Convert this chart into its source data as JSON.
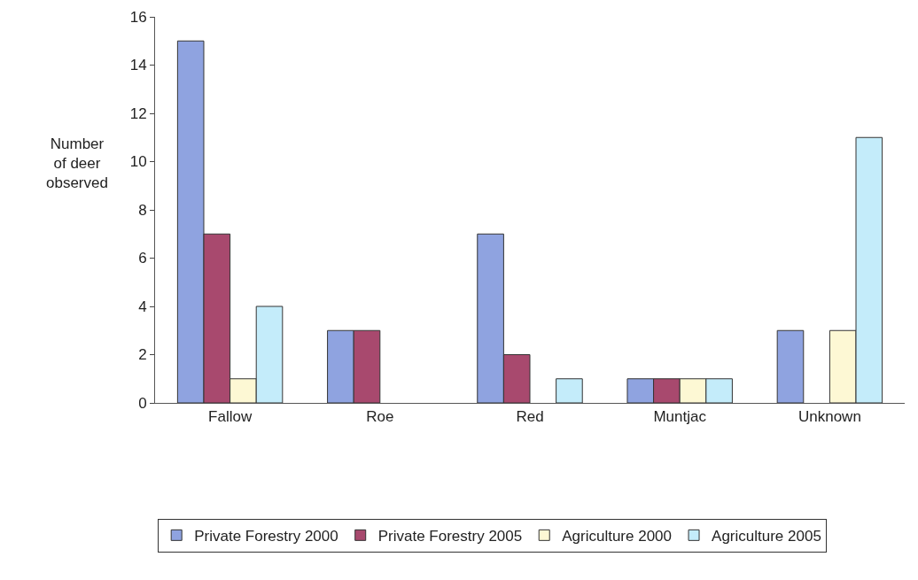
{
  "chart_data": {
    "type": "bar",
    "ylabel": "Number\nof deer\nobserved",
    "categories": [
      "Fallow",
      "Roe",
      "Red",
      "Muntjac",
      "Unknown"
    ],
    "series": [
      {
        "name": "Private Forestry 2000",
        "color": "#8fa3e0",
        "values": [
          15,
          3,
          7,
          1,
          3
        ]
      },
      {
        "name": "Private Forestry 2005",
        "color": "#a8496e",
        "values": [
          7,
          3,
          2,
          1,
          null
        ]
      },
      {
        "name": "Agriculture 2000",
        "color": "#fdf8d4",
        "values": [
          1,
          null,
          null,
          1,
          3
        ]
      },
      {
        "name": "Agriculture 2005",
        "color": "#c4ecfa",
        "values": [
          4,
          null,
          1,
          1,
          11
        ]
      }
    ],
    "ylim": [
      0,
      16
    ],
    "yticks": [
      0,
      2,
      4,
      6,
      8,
      10,
      12,
      14,
      16
    ],
    "legend": "bottom"
  }
}
